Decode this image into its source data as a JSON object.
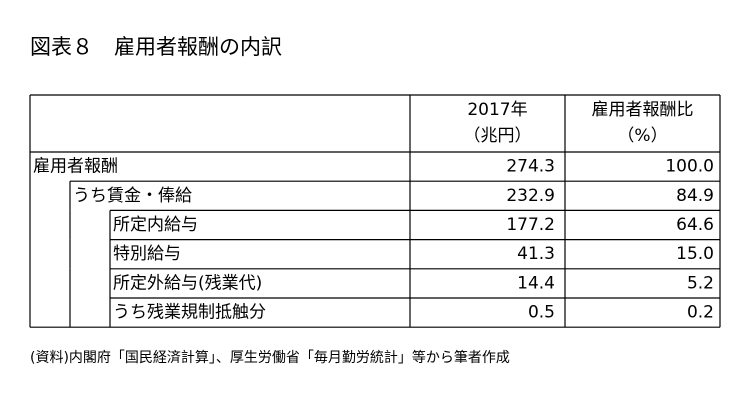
{
  "header": {
    "title": "図表８　雇用者報酬の内訳"
  },
  "table": {
    "columns": [
      [
        "2017年",
        "（兆円）"
      ],
      [
        "雇用者報酬比",
        "（%）"
      ]
    ],
    "rows": [
      {
        "label": "雇用者報酬",
        "level": 0,
        "cells": [
          "274.3",
          "100.0"
        ]
      },
      {
        "label": "うち賃金・俸給",
        "level": 1,
        "cells": [
          "232.9",
          "84.9"
        ]
      },
      {
        "label": "所定内給与",
        "level": 2,
        "cells": [
          "177.2",
          "64.6"
        ]
      },
      {
        "label": "特別給与",
        "level": 2,
        "cells": [
          "41.3",
          "15.0"
        ]
      },
      {
        "label": "所定外給与(残業代)",
        "level": 2,
        "cells": [
          "14.4",
          "5.2"
        ]
      },
      {
        "label": "うち残業規制抵触分",
        "level": 2,
        "cells": [
          "0.5",
          "0.2"
        ]
      }
    ]
  },
  "footer": {
    "note": "(資料)内閣府「国民経済計算」、厚生労働省「毎月勤労統計」等から筆者作成"
  }
}
